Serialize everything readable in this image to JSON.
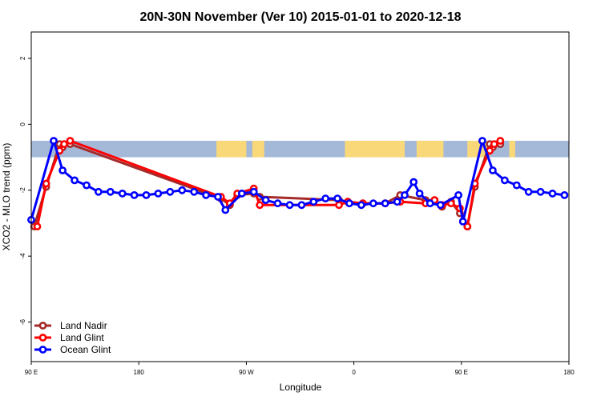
{
  "colors": {
    "land_nadir": "#a52a2a",
    "land_glint": "#ff0000",
    "ocean_glint": "#0000ff",
    "ocean_band": "#a4b8d8",
    "land_band": "#f8d878"
  },
  "chart_data": {
    "type": "line",
    "title": "20N-30N November (Ver 10)   2015-01-01 to 2020-12-18",
    "xlabel": "Longitude",
    "ylabel": "XCO2 - MLO trend (ppm)",
    "xlim": [
      0,
      360
    ],
    "ylim": [
      -7.2,
      2.8
    ],
    "x_ticks": [
      {
        "x": 0,
        "label": "90 E"
      },
      {
        "x": 72,
        "label": "180"
      },
      {
        "x": 144,
        "label": "90 W"
      },
      {
        "x": 216,
        "label": "0"
      },
      {
        "x": 288,
        "label": "90 E"
      },
      {
        "x": 360,
        "label": "180"
      }
    ],
    "y_ticks": [
      {
        "y": 2,
        "label": "2"
      },
      {
        "y": 0,
        "label": "0"
      },
      {
        "y": -2,
        "label": "-2"
      },
      {
        "y": -4,
        "label": "-4"
      },
      {
        "y": -6,
        "label": "-6"
      }
    ],
    "grid": false,
    "legend_position": "bottom-left",
    "map_band": {
      "y_range": [
        -1.0,
        -0.5
      ],
      "land_segments": [
        [
          124,
          144
        ],
        [
          148,
          156
        ],
        [
          210,
          250
        ],
        [
          258,
          276
        ],
        [
          292,
          306
        ],
        [
          320,
          324
        ]
      ]
    },
    "series": [
      {
        "name": "Land Nadir",
        "color_key": "land_nadir",
        "points": [
          [
            2,
            -3.1
          ],
          [
            10,
            -1.9
          ],
          [
            19,
            -0.6
          ],
          [
            21,
            -0.7
          ],
          [
            26,
            -0.6
          ],
          [
            127,
            -2.25
          ],
          [
            133,
            -2.45
          ],
          [
            138,
            -2.15
          ],
          [
            149,
            -2.1
          ],
          [
            153,
            -2.2
          ],
          [
            206,
            -2.3
          ],
          [
            212,
            -2.35
          ],
          [
            222,
            -2.4
          ],
          [
            237,
            -2.4
          ],
          [
            247,
            -2.15
          ],
          [
            264,
            -2.3
          ],
          [
            270,
            -2.3
          ],
          [
            275,
            -2.5
          ],
          [
            281,
            -2.35
          ],
          [
            287,
            -2.7
          ],
          [
            292,
            -3.1
          ],
          [
            297,
            -1.9
          ],
          [
            307,
            -0.6
          ],
          [
            309,
            -0.7
          ],
          [
            314,
            -0.6
          ]
        ]
      },
      {
        "name": "Land Glint",
        "color_key": "land_glint",
        "points": [
          [
            4,
            -3.1
          ],
          [
            10,
            -1.8
          ],
          [
            19,
            -0.8
          ],
          [
            22,
            -0.6
          ],
          [
            26,
            -0.5
          ],
          [
            127,
            -2.2
          ],
          [
            133,
            -2.4
          ],
          [
            138,
            -2.1
          ],
          [
            149,
            -1.95
          ],
          [
            153,
            -2.45
          ],
          [
            206,
            -2.45
          ],
          [
            212,
            -2.35
          ],
          [
            222,
            -2.4
          ],
          [
            237,
            -2.4
          ],
          [
            247,
            -2.35
          ],
          [
            264,
            -2.4
          ],
          [
            270,
            -2.3
          ],
          [
            275,
            -2.45
          ],
          [
            281,
            -2.4
          ],
          [
            287,
            -2.55
          ],
          [
            292,
            -3.1
          ],
          [
            297,
            -1.8
          ],
          [
            307,
            -0.8
          ],
          [
            310,
            -0.6
          ],
          [
            314,
            -0.5
          ]
        ]
      },
      {
        "name": "Ocean Glint",
        "color_key": "ocean_glint",
        "points": [
          [
            0,
            -2.9
          ],
          [
            15,
            -0.5
          ],
          [
            21,
            -1.4
          ],
          [
            29,
            -1.7
          ],
          [
            37,
            -1.85
          ],
          [
            45,
            -2.05
          ],
          [
            53,
            -2.05
          ],
          [
            61,
            -2.1
          ],
          [
            69,
            -2.15
          ],
          [
            77,
            -2.15
          ],
          [
            85,
            -2.1
          ],
          [
            93,
            -2.05
          ],
          [
            101,
            -2.0
          ],
          [
            109,
            -2.05
          ],
          [
            117,
            -2.15
          ],
          [
            125,
            -2.2
          ],
          [
            130,
            -2.6
          ],
          [
            141,
            -2.1
          ],
          [
            149,
            -2.05
          ],
          [
            157,
            -2.3
          ],
          [
            165,
            -2.4
          ],
          [
            173,
            -2.45
          ],
          [
            181,
            -2.45
          ],
          [
            189,
            -2.35
          ],
          [
            197,
            -2.25
          ],
          [
            205,
            -2.25
          ],
          [
            213,
            -2.4
          ],
          [
            221,
            -2.45
          ],
          [
            229,
            -2.4
          ],
          [
            237,
            -2.4
          ],
          [
            245,
            -2.35
          ],
          [
            250,
            -2.15
          ],
          [
            256,
            -1.75
          ],
          [
            260,
            -2.1
          ],
          [
            267,
            -2.4
          ],
          [
            274,
            -2.45
          ],
          [
            286,
            -2.15
          ],
          [
            289,
            -2.95
          ],
          [
            302,
            -0.5
          ],
          [
            309,
            -1.4
          ],
          [
            317,
            -1.7
          ],
          [
            325,
            -1.85
          ],
          [
            333,
            -2.05
          ],
          [
            341,
            -2.05
          ],
          [
            349,
            -2.1
          ],
          [
            357,
            -2.15
          ]
        ]
      }
    ]
  }
}
